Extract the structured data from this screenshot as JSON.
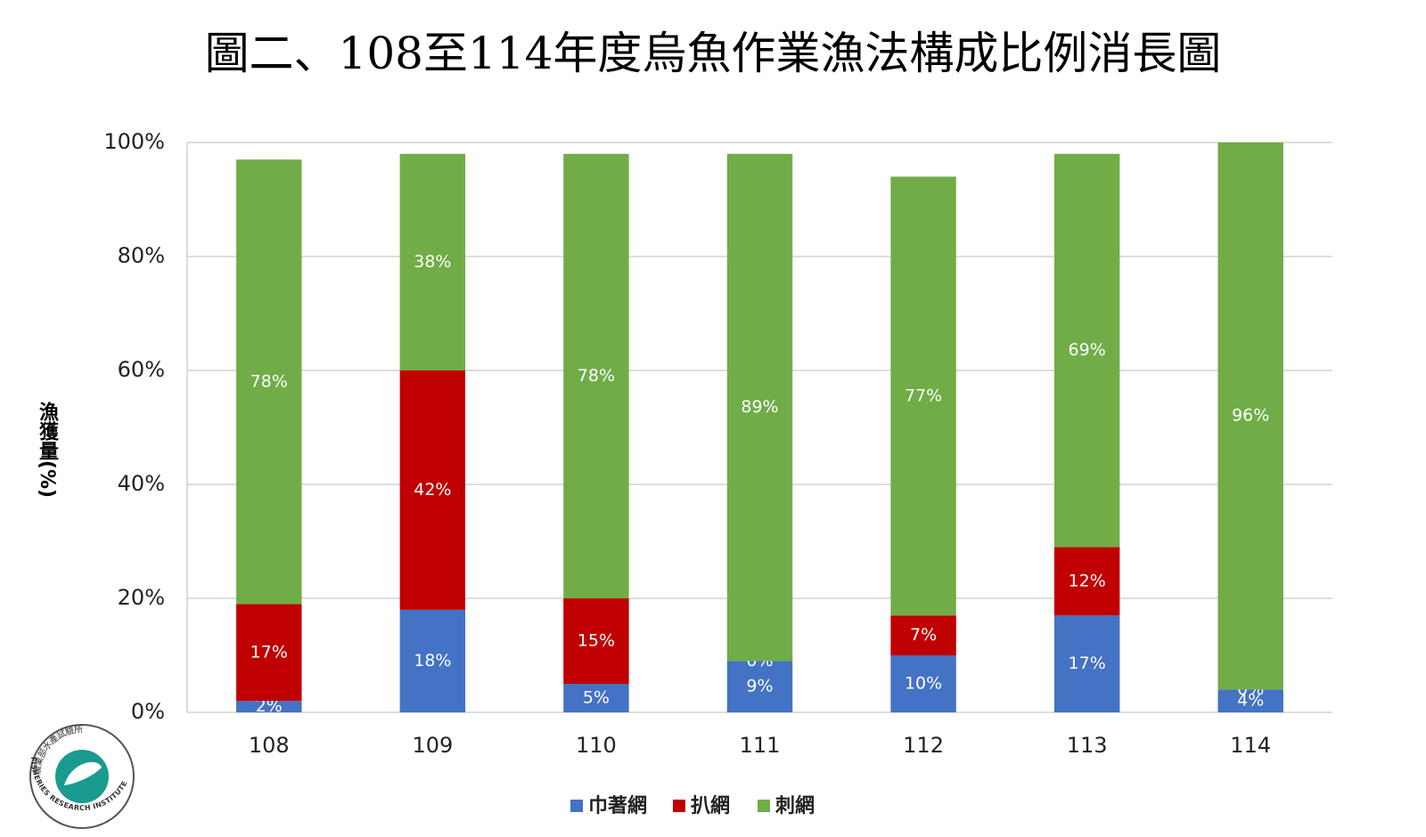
{
  "chart_data": {
    "type": "stacked_bar",
    "title": "圖二、108至114年度烏魚作業漁法構成比例消長圖",
    "y_label": "漁獲量(%)",
    "categories": [
      "108",
      "109",
      "110",
      "111",
      "112",
      "113",
      "114"
    ],
    "series": [
      {
        "name": "巾著網",
        "color": "#4472c4",
        "values": [
          2,
          18,
          5,
          9,
          10,
          17,
          4
        ],
        "value_labels": [
          "2%",
          "18%",
          "5%",
          "9%",
          "10%",
          "17%",
          "4%"
        ]
      },
      {
        "name": "扒網",
        "color": "#c00000",
        "values": [
          17,
          42,
          15,
          0,
          7,
          12,
          0
        ],
        "value_labels": [
          "17%",
          "42%",
          "15%",
          "0%",
          "7%",
          "12%",
          "0%"
        ]
      },
      {
        "name": "刺網",
        "color": "#70ad47",
        "values": [
          78,
          38,
          78,
          89,
          77,
          69,
          96
        ],
        "value_labels": [
          "78%",
          "38%",
          "78%",
          "89%",
          "77%",
          "69%",
          "96%"
        ]
      }
    ],
    "ylim": [
      0,
      100
    ],
    "yticks": [
      {
        "value": 0,
        "label": "0%"
      },
      {
        "value": 20,
        "label": "20%"
      },
      {
        "value": 40,
        "label": "40%"
      },
      {
        "value": 60,
        "label": "60%"
      },
      {
        "value": 80,
        "label": "80%"
      },
      {
        "value": 100,
        "label": "100%"
      }
    ],
    "grid": true,
    "legend": "bottom",
    "annotations": [
      "農業部水產試驗所",
      "FISHERIES RESEARCH INSTITUTE"
    ]
  }
}
